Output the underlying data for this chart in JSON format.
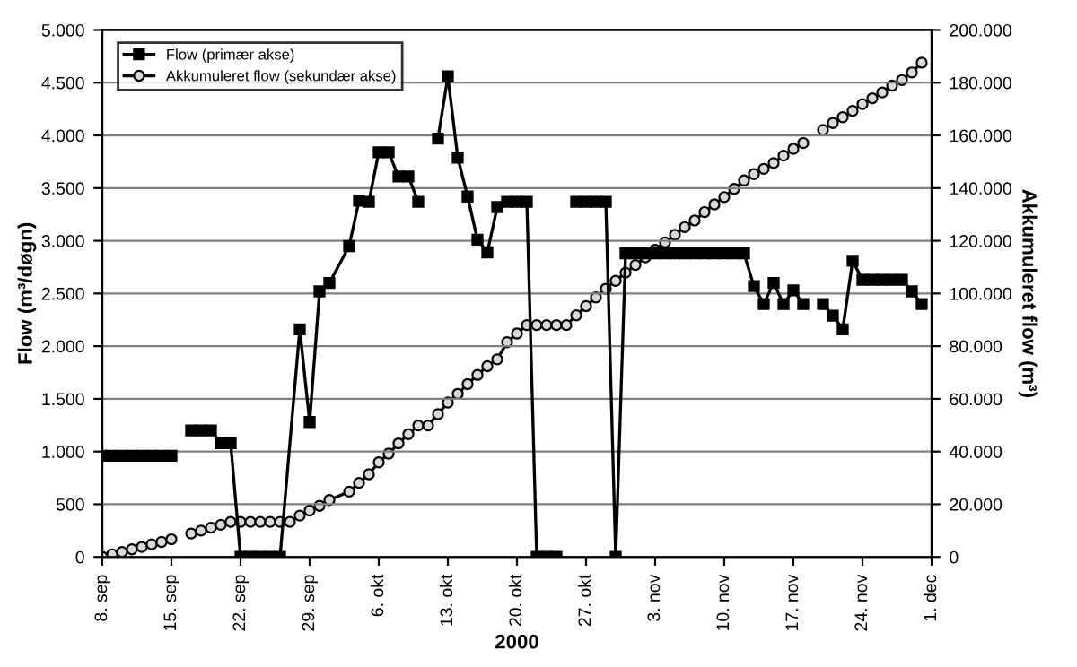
{
  "chart_data": {
    "type": "line",
    "xlabel": "2000",
    "ylabel": "Flow (m³/døgn)",
    "y2label": "Akkumuleret flow (m³)",
    "xlim": [
      "2000-09-08",
      "2000-12-01"
    ],
    "xticks": [
      {
        "value": "2000-09-08",
        "label": "8. sep"
      },
      {
        "value": "2000-09-15",
        "label": "15. sep"
      },
      {
        "value": "2000-09-22",
        "label": "22. sep"
      },
      {
        "value": "2000-09-29",
        "label": "29. sep"
      },
      {
        "value": "2000-10-06",
        "label": "6. okt"
      },
      {
        "value": "2000-10-13",
        "label": "13. okt"
      },
      {
        "value": "2000-10-20",
        "label": "20. okt"
      },
      {
        "value": "2000-10-27",
        "label": "27. okt"
      },
      {
        "value": "2000-11-03",
        "label": "3. nov"
      },
      {
        "value": "2000-11-10",
        "label": "10. nov"
      },
      {
        "value": "2000-11-17",
        "label": "17. nov"
      },
      {
        "value": "2000-11-24",
        "label": "24. nov"
      },
      {
        "value": "2000-12-01",
        "label": "1. dec"
      }
    ],
    "ylim": [
      0,
      5000
    ],
    "yticks": [
      0,
      {
        "value": 500,
        "label": "500"
      },
      {
        "value": 1000,
        "label": "1.000"
      },
      {
        "value": 1500,
        "label": "1.500"
      },
      {
        "value": 2000,
        "label": "2.000"
      },
      {
        "value": 2500,
        "label": "2.500"
      },
      {
        "value": 3000,
        "label": "3.000"
      },
      {
        "value": 3500,
        "label": "3.500"
      },
      {
        "value": 4000,
        "label": "4.000"
      },
      {
        "value": 4500,
        "label": "4.500"
      },
      {
        "value": 5000,
        "label": "5.000"
      }
    ],
    "y2lim": [
      0,
      200000
    ],
    "y2ticks": [
      0,
      {
        "value": 20000,
        "label": "20.000"
      },
      {
        "value": 40000,
        "label": "40.000"
      },
      {
        "value": 60000,
        "label": "60.000"
      },
      {
        "value": 80000,
        "label": "80.000"
      },
      {
        "value": 100000,
        "label": "100.000"
      },
      {
        "value": 120000,
        "label": "120.000"
      },
      {
        "value": 140000,
        "label": "140.000"
      },
      {
        "value": 160000,
        "label": "160.000"
      },
      {
        "value": 180000,
        "label": "180.000"
      },
      {
        "value": 200000,
        "label": "200.000"
      }
    ],
    "grid": "y",
    "legend": "top left",
    "line_style": "solid",
    "series": [
      {
        "name": "Flow (primær akse)",
        "color": "#000000",
        "marker": "square",
        "x": [
          "2000-09-08",
          "2000-09-09",
          "2000-09-10",
          "2000-09-11",
          "2000-09-12",
          "2000-09-13",
          "2000-09-14",
          "2000-09-15",
          "2000-09-16",
          "2000-09-17",
          "2000-09-18",
          "2000-09-19",
          "2000-09-20",
          "2000-09-21",
          "2000-09-22",
          "2000-09-23",
          "2000-09-24",
          "2000-09-25",
          "2000-09-26",
          "2000-09-28",
          "2000-09-29",
          "2000-09-30",
          "2000-10-01",
          "2000-10-03",
          "2000-10-04",
          "2000-10-05",
          "2000-10-06",
          "2000-10-07",
          "2000-10-08",
          "2000-10-09",
          "2000-10-10",
          "2000-10-11",
          "2000-10-12",
          "2000-10-13",
          "2000-10-14",
          "2000-10-15",
          "2000-10-16",
          "2000-10-17",
          "2000-10-18",
          "2000-10-19",
          "2000-10-20",
          "2000-10-21",
          "2000-10-22",
          "2000-10-23",
          "2000-10-24",
          "2000-10-25",
          "2000-10-26",
          "2000-10-27",
          "2000-10-28",
          "2000-10-29",
          "2000-10-30",
          "2000-10-31",
          "2000-11-01",
          "2000-11-02",
          "2000-11-03",
          "2000-11-04",
          "2000-11-05",
          "2000-11-06",
          "2000-11-07",
          "2000-11-08",
          "2000-11-09",
          "2000-11-10",
          "2000-11-11",
          "2000-11-12",
          "2000-11-13",
          "2000-11-14",
          "2000-11-15",
          "2000-11-16",
          "2000-11-17",
          "2000-11-18",
          "2000-11-19",
          "2000-11-20",
          "2000-11-21",
          "2000-11-22",
          "2000-11-23",
          "2000-11-24",
          "2000-11-25",
          "2000-11-26",
          "2000-11-27",
          "2000-11-28",
          "2000-11-29",
          "2000-11-30"
        ],
        "values": [
          960,
          960,
          960,
          960,
          960,
          960,
          960,
          960,
          null,
          1200,
          1200,
          1200,
          1080,
          1080,
          0,
          0,
          0,
          0,
          0,
          2160,
          1280,
          2520,
          2600,
          2950,
          3380,
          3370,
          3840,
          3840,
          3610,
          3610,
          3370,
          null,
          3970,
          4560,
          3790,
          3420,
          3010,
          2890,
          3320,
          3370,
          3370,
          3370,
          0,
          0,
          0,
          null,
          3370,
          3370,
          3370,
          3370,
          0,
          2880,
          2880,
          2880,
          2880,
          2880,
          2880,
          2880,
          2880,
          2880,
          2880,
          2880,
          2880,
          2880,
          2570,
          2400,
          2600,
          2400,
          2530,
          2400,
          null,
          2400,
          2290,
          2160,
          2810,
          2630,
          2630,
          2630,
          2630,
          2630,
          2520,
          2400
        ]
      },
      {
        "name": "Akkumuleret flow (sekundær akse)",
        "color": "#000000",
        "marker": "circle",
        "axis": "y2",
        "x": [
          "2000-09-08",
          "2000-09-09",
          "2000-09-10",
          "2000-09-11",
          "2000-09-12",
          "2000-09-13",
          "2000-09-14",
          "2000-09-15",
          "2000-09-16",
          "2000-09-17",
          "2000-09-18",
          "2000-09-19",
          "2000-09-20",
          "2000-09-21",
          "2000-09-22",
          "2000-09-23",
          "2000-09-24",
          "2000-09-25",
          "2000-09-26",
          "2000-09-27",
          "2000-09-28",
          "2000-09-29",
          "2000-09-30",
          "2000-10-01",
          "2000-10-03",
          "2000-10-04",
          "2000-10-05",
          "2000-10-06",
          "2000-10-07",
          "2000-10-08",
          "2000-10-09",
          "2000-10-10",
          "2000-10-11",
          "2000-10-12",
          "2000-10-13",
          "2000-10-14",
          "2000-10-15",
          "2000-10-16",
          "2000-10-17",
          "2000-10-18",
          "2000-10-19",
          "2000-10-20",
          "2000-10-21",
          "2000-10-22",
          "2000-10-23",
          "2000-10-24",
          "2000-10-25",
          "2000-10-26",
          "2000-10-27",
          "2000-10-28",
          "2000-10-29",
          "2000-10-30",
          "2000-10-31",
          "2000-11-01",
          "2000-11-02",
          "2000-11-03",
          "2000-11-04",
          "2000-11-05",
          "2000-11-06",
          "2000-11-07",
          "2000-11-08",
          "2000-11-09",
          "2000-11-10",
          "2000-11-11",
          "2000-11-12",
          "2000-11-13",
          "2000-11-14",
          "2000-11-15",
          "2000-11-16",
          "2000-11-17",
          "2000-11-18",
          "2000-11-19",
          "2000-11-20",
          "2000-11-21",
          "2000-11-22",
          "2000-11-23",
          "2000-11-24",
          "2000-11-25",
          "2000-11-26",
          "2000-11-27",
          "2000-11-28",
          "2000-11-29",
          "2000-11-30"
        ],
        "values": [
          0,
          1000,
          1900,
          2900,
          3800,
          4800,
          5700,
          6700,
          null,
          8900,
          10000,
          11100,
          12200,
          13300,
          13300,
          13300,
          13300,
          13300,
          13300,
          13300,
          15700,
          17600,
          19400,
          21600,
          24800,
          28100,
          31400,
          35900,
          39200,
          43100,
          46600,
          49900,
          49900,
          54200,
          58600,
          61900,
          65600,
          69100,
          72400,
          75000,
          81500,
          84800,
          88000,
          88000,
          88000,
          88000,
          88000,
          91700,
          95200,
          98500,
          101800,
          104800,
          107900,
          110800,
          113700,
          116600,
          119400,
          122300,
          125200,
          127700,
          130900,
          133800,
          136600,
          139700,
          142900,
          145300,
          147300,
          149500,
          152300,
          154900,
          157100,
          null,
          162100,
          164700,
          166900,
          169300,
          171900,
          174100,
          176300,
          178900,
          181000,
          183900,
          187600
        ]
      }
    ]
  }
}
